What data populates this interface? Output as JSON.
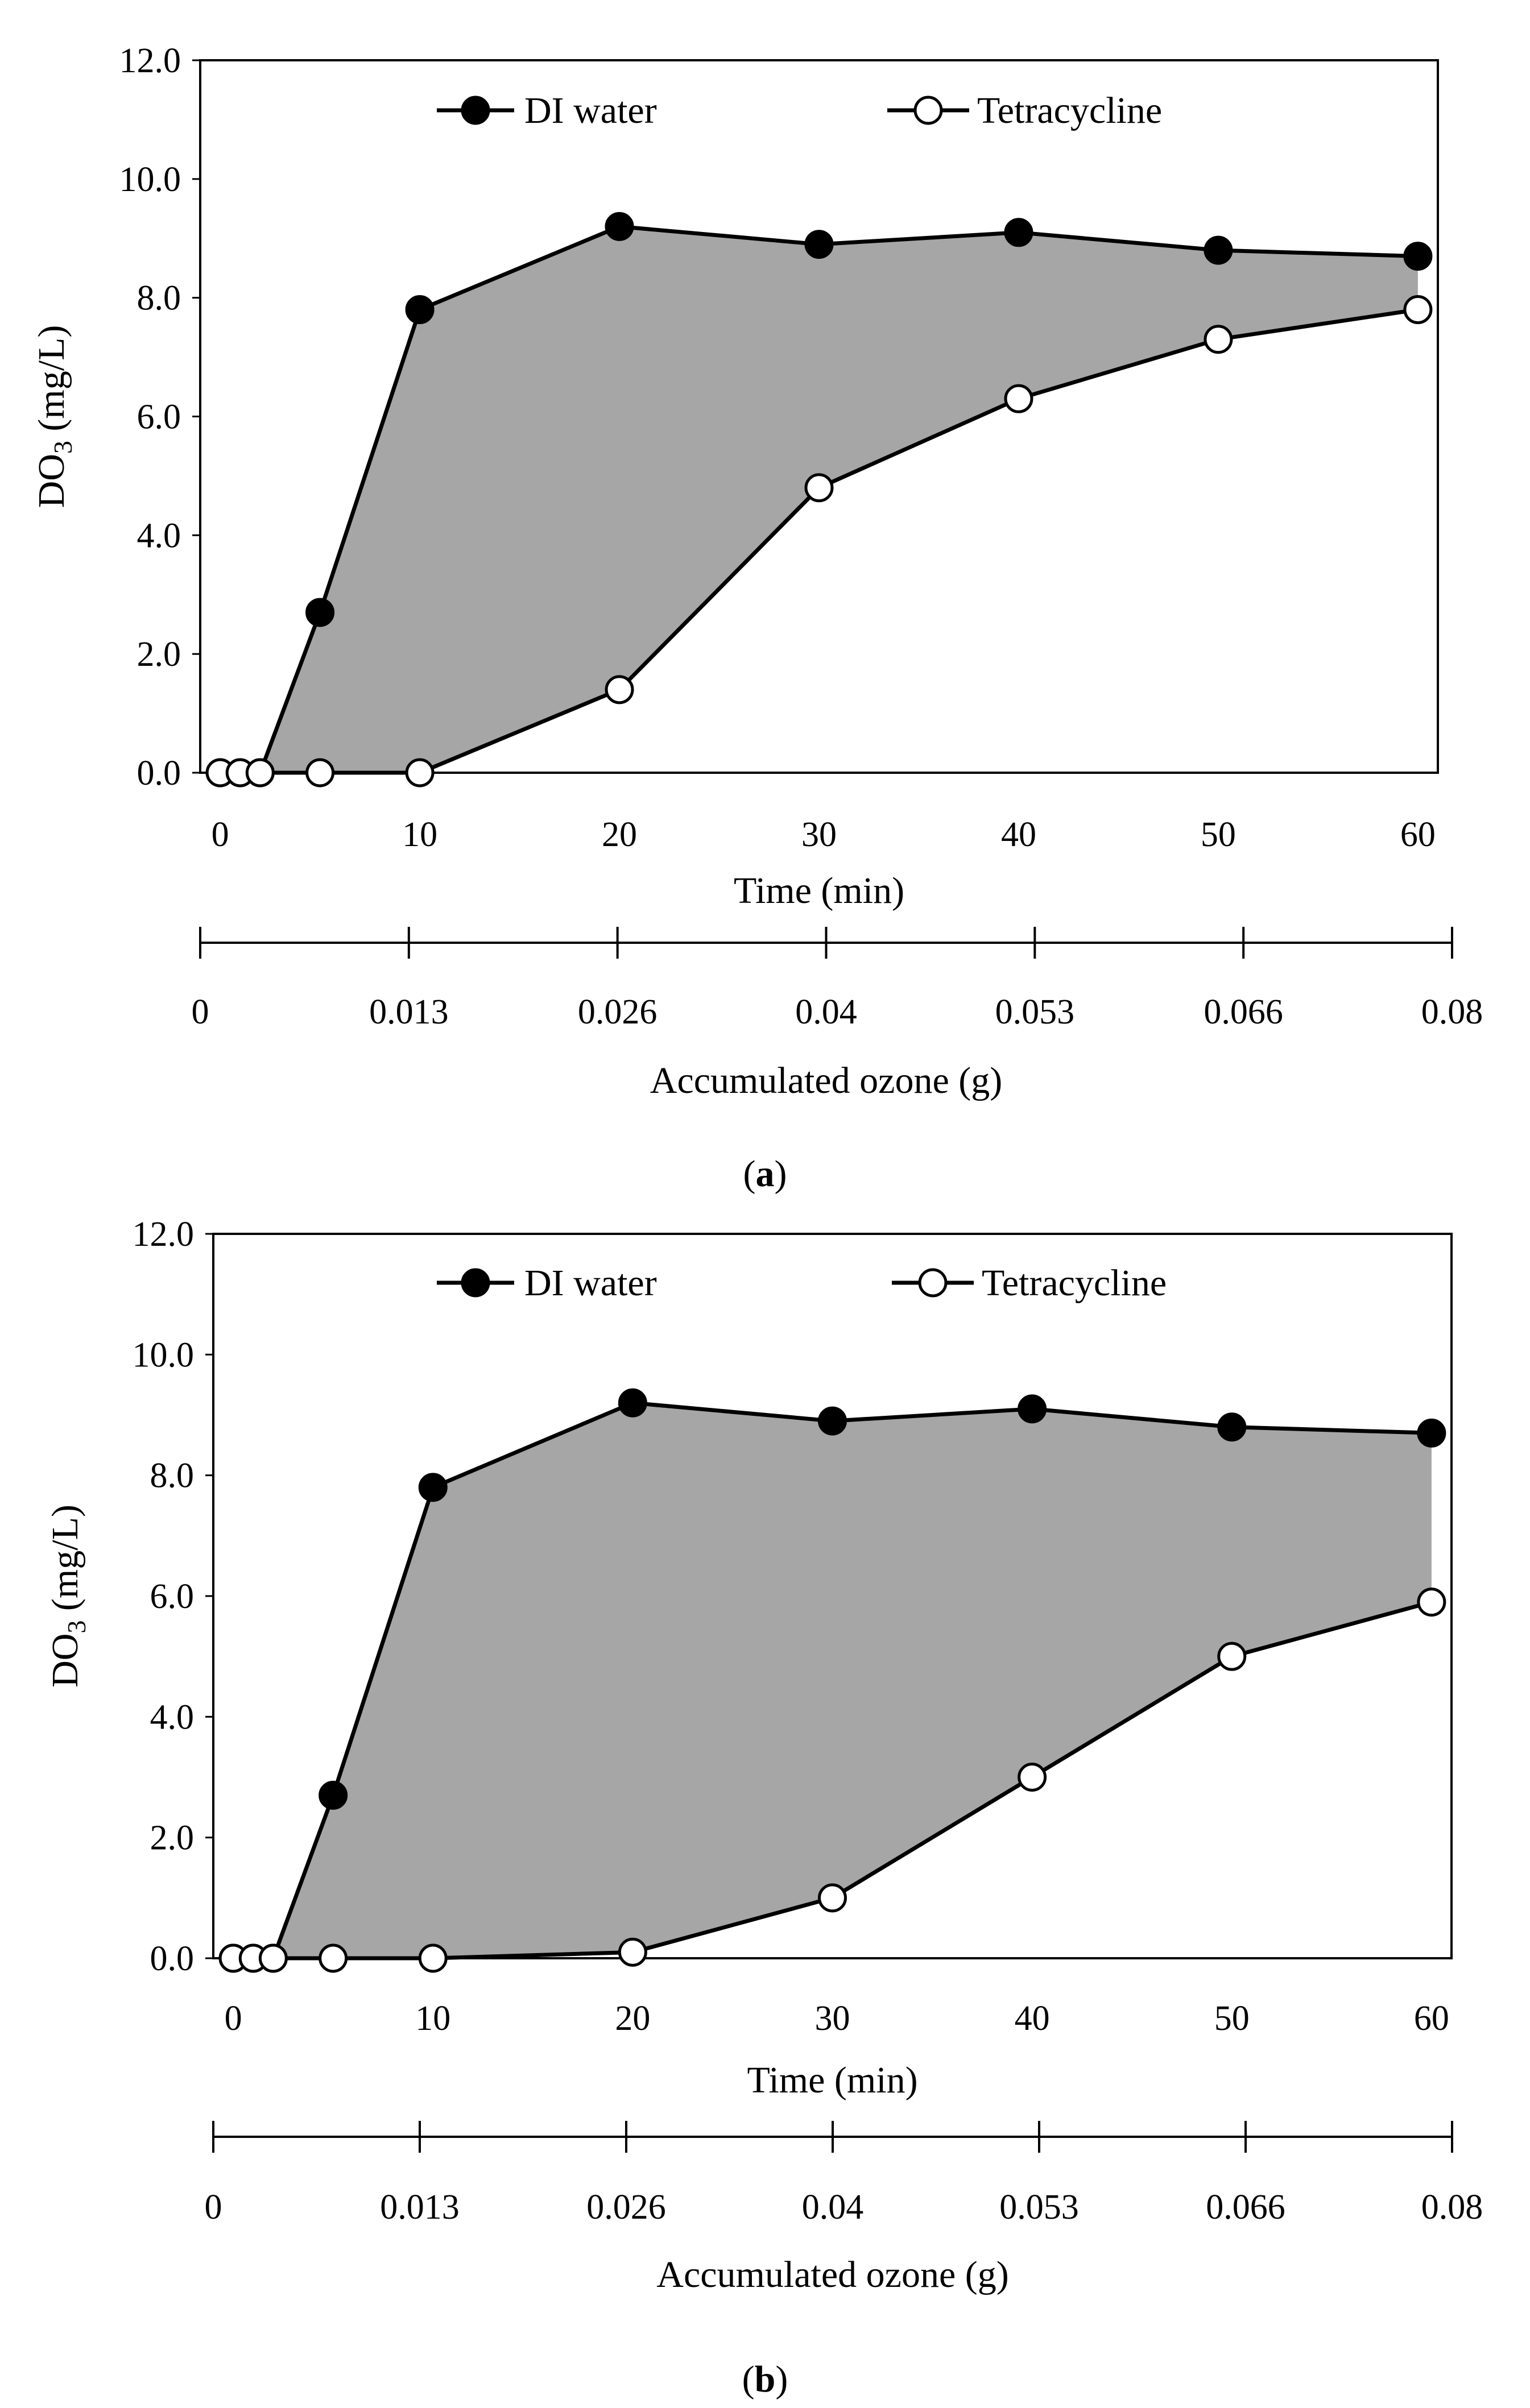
{
  "colors": {
    "fill_between": "#a6a6a6",
    "line": "#000000",
    "marker_filled": "#000000",
    "marker_open": "#ffffff",
    "background": "#ffffff"
  },
  "chart_data": [
    {
      "id": "a",
      "panel_label": {
        "open": "(",
        "letter": "a",
        "close": ")"
      },
      "type": "line",
      "title": "",
      "xlabel": "Time (min)",
      "ylabel_main": "DO",
      "ylabel_sub": "3",
      "ylabel_unit": " (mg/L)",
      "xlim": [
        -1,
        61
      ],
      "ylim": [
        0,
        12
      ],
      "xticks": [
        0,
        10,
        20,
        30,
        40,
        50,
        60
      ],
      "xtick_labels": [
        "0",
        "10",
        "20",
        "30",
        "40",
        "50",
        "60"
      ],
      "yticks": [
        0,
        2,
        4,
        6,
        8,
        10,
        12
      ],
      "ytick_labels": [
        "0.0",
        "2.0",
        "4.0",
        "6.0",
        "8.0",
        "10.0",
        "12.0"
      ],
      "fill_between": true,
      "grid": false,
      "legend_position": "top",
      "series": [
        {
          "name": "DI water",
          "marker": "filled",
          "x": [
            0,
            1,
            2,
            5,
            10,
            20,
            30,
            40,
            50,
            60
          ],
          "y": [
            0,
            0,
            0,
            2.7,
            7.8,
            9.2,
            8.9,
            9.1,
            8.8,
            8.7
          ]
        },
        {
          "name": "Tetracycline",
          "marker": "open",
          "x": [
            0,
            1,
            2,
            5,
            10,
            20,
            30,
            40,
            50,
            60
          ],
          "y": [
            0,
            0,
            0,
            0,
            0,
            1.4,
            4.8,
            6.3,
            7.3,
            7.8
          ]
        }
      ],
      "secondary_axis": {
        "label": "Accumulated ozone (g)",
        "ticks": [
          "0",
          "0.013",
          "0.026",
          "0.04",
          "0.053",
          "0.066",
          "0.08"
        ]
      }
    },
    {
      "id": "b",
      "panel_label": {
        "open": "(",
        "letter": "b",
        "close": ")"
      },
      "type": "line",
      "title": "",
      "xlabel": "Time (min)",
      "ylabel_main": "DO",
      "ylabel_sub": "3",
      "ylabel_unit": " (mg/L)",
      "xlim": [
        -1,
        61
      ],
      "ylim": [
        0,
        12
      ],
      "xticks": [
        0,
        10,
        20,
        30,
        40,
        50,
        60
      ],
      "xtick_labels": [
        "0",
        "10",
        "20",
        "30",
        "40",
        "50",
        "60"
      ],
      "yticks": [
        0,
        2,
        4,
        6,
        8,
        10,
        12
      ],
      "ytick_labels": [
        "0.0",
        "2.0",
        "4.0",
        "6.0",
        "8.0",
        "10.0",
        "12.0"
      ],
      "fill_between": true,
      "grid": false,
      "legend_position": "top",
      "series": [
        {
          "name": "DI water",
          "marker": "filled",
          "x": [
            0,
            1,
            2,
            5,
            10,
            20,
            30,
            40,
            50,
            60
          ],
          "y": [
            0,
            0,
            0,
            2.7,
            7.8,
            9.2,
            8.9,
            9.1,
            8.8,
            8.7
          ]
        },
        {
          "name": "Tetracycline",
          "marker": "open",
          "x": [
            0,
            1,
            2,
            5,
            10,
            20,
            30,
            40,
            50,
            60
          ],
          "y": [
            0,
            0,
            0,
            0,
            0,
            0.1,
            1.0,
            3.0,
            5.0,
            5.9
          ]
        }
      ],
      "secondary_axis": {
        "label": "Accumulated ozone (g)",
        "ticks": [
          "0",
          "0.013",
          "0.026",
          "0.04",
          "0.053",
          "0.066",
          "0.08"
        ]
      }
    }
  ]
}
